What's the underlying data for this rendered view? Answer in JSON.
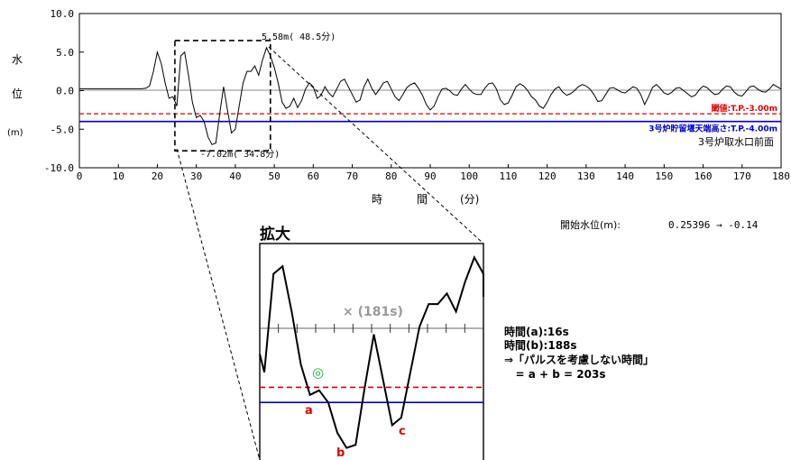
{
  "chart_data": {
    "type": "line",
    "x": [
      0,
      1,
      2,
      3,
      4,
      5,
      6,
      7,
      8,
      9,
      10,
      11,
      12,
      13,
      14,
      15,
      16,
      17,
      18,
      19,
      20,
      21,
      22,
      23,
      24,
      25,
      26,
      27,
      28,
      29,
      30,
      31,
      32,
      33,
      34,
      35,
      36,
      37,
      38,
      39,
      40,
      41,
      42,
      43,
      44,
      45,
      46,
      47,
      48,
      49,
      50,
      51,
      52,
      53,
      54,
      55,
      56,
      57,
      58,
      59,
      60,
      61,
      62,
      63,
      64,
      65,
      66,
      67,
      68,
      69,
      70,
      71,
      72,
      73,
      74,
      75,
      76,
      77,
      78,
      79,
      80,
      81,
      82,
      83,
      84,
      85,
      86,
      87,
      88,
      89,
      90,
      91,
      92,
      93,
      94,
      95,
      96,
      97,
      98,
      99,
      100,
      101,
      102,
      103,
      104,
      105,
      106,
      107,
      108,
      109,
      110,
      111,
      112,
      113,
      114,
      115,
      116,
      117,
      118,
      119,
      120,
      121,
      122,
      123,
      124,
      125,
      126,
      127,
      128,
      129,
      130,
      131,
      132,
      133,
      134,
      135,
      136,
      137,
      138,
      139,
      140,
      141,
      142,
      143,
      144,
      145,
      146,
      147,
      148,
      149,
      150,
      151,
      152,
      153,
      154,
      155,
      156,
      157,
      158,
      159,
      160,
      161,
      162,
      163,
      164,
      165,
      166,
      167,
      168,
      169,
      170,
      171,
      172,
      173,
      174,
      175,
      176,
      177,
      178,
      179,
      180
    ],
    "y": [
      0.25,
      0.25,
      0.25,
      0.25,
      0.25,
      0.25,
      0.25,
      0.25,
      0.25,
      0.25,
      0.25,
      0.25,
      0.25,
      0.25,
      0.25,
      0.25,
      0.25,
      0.3,
      0.6,
      2.5,
      5.0,
      3.5,
      1.0,
      -1.0,
      -0.8,
      -2.0,
      4.5,
      5.0,
      2.0,
      -1.5,
      -3.5,
      -3.2,
      -4.0,
      -6.0,
      -7.0,
      -6.8,
      -3.0,
      0.5,
      -2.5,
      -5.5,
      -5.0,
      -2.0,
      1.0,
      2.5,
      2.5,
      3.2,
      2.0,
      4.0,
      5.58,
      4.5,
      3.0,
      1.0,
      -1.5,
      -2.3,
      -2.0,
      -1.0,
      -2.2,
      -1.3,
      0.2,
      1.0,
      0.5,
      -1.0,
      -0.6,
      0.5,
      -0.3,
      -0.8,
      0.2,
      1.2,
      1.5,
      0.5,
      -0.5,
      -1.5,
      -1.2,
      0.5,
      1.5,
      0.3,
      -0.5,
      0.2,
      1.0,
      1.2,
      0.2,
      -0.8,
      -1.3,
      -0.5,
      0.4,
      0.8,
      1.0,
      0.3,
      -0.6,
      -1.8,
      -2.5,
      -2.0,
      -0.8,
      0.2,
      0.3,
      0.0,
      -0.5,
      -0.6,
      0.2,
      0.8,
      0.2,
      -0.3,
      -0.5,
      -0.5,
      0.3,
      0.9,
      1.0,
      0.2,
      -1.2,
      -1.8,
      -1.6,
      -0.6,
      0.5,
      0.9,
      0.6,
      0.0,
      -0.8,
      -1.2,
      -2.0,
      -2.3,
      -1.5,
      -0.5,
      0.2,
      0.5,
      -0.2,
      -0.6,
      -0.4,
      0.0,
      0.5,
      0.8,
      0.6,
      0.2,
      -0.5,
      -1.4,
      -1.3,
      -0.5,
      0.3,
      0.4,
      0.1,
      -0.2,
      -0.3,
      0.1,
      0.5,
      0.3,
      -0.5,
      -1.8,
      -0.8,
      0.4,
      0.8,
      0.3,
      -0.3,
      -0.5,
      -0.2,
      0.3,
      0.4,
      0.0,
      -0.4,
      -0.8,
      -0.6,
      0.1,
      0.6,
      0.4,
      -0.1,
      -0.5,
      -0.4,
      0.2,
      0.6,
      0.5,
      -0.2,
      -0.6,
      -0.7,
      -0.1,
      0.5,
      0.6,
      0.2,
      -0.1,
      -0.2,
      0.2,
      0.8,
      0.5,
      0.2
    ],
    "xlim": [
      0,
      180
    ],
    "ylim": [
      -10,
      10
    ],
    "xticks": [
      0,
      10,
      20,
      30,
      40,
      50,
      60,
      70,
      80,
      90,
      100,
      110,
      120,
      130,
      140,
      150,
      160,
      170,
      180
    ],
    "yticks": [
      10,
      5,
      0,
      -5,
      -10
    ],
    "ytick_labels": [
      "10.0",
      "5.0",
      "0.0",
      "-5.0",
      "-10.0"
    ],
    "xlabel_parts": [
      "時",
      "間",
      "(分)"
    ],
    "ylabel_parts": [
      "水",
      "位",
      "(m)"
    ],
    "reference_lines": [
      {
        "y": -3.0,
        "label": "閾値:T.P.-3.00m",
        "color": "#e00000",
        "style": "dashed"
      },
      {
        "y": -4.0,
        "label": "3号炉貯留堰天端高さ:T.P.-4.00m",
        "color": "#0000cc",
        "style": "solid"
      }
    ],
    "location_label": "3号炉取水口前面",
    "max_annotation": "5.58m( 48.5分)",
    "min_annotation": "-7.02m( 34.8分)",
    "start_level_label": "開始水位(m):",
    "start_level_value": "0.25396 → -0.14",
    "zoom_window": {
      "x": [
        24.5,
        49
      ],
      "y": [
        -7.8,
        6.5
      ]
    },
    "grid": false,
    "legend": "none"
  },
  "zoom": {
    "title": "拡大",
    "cross_label": "× (181s)",
    "double_circle": "◎",
    "point_labels": [
      "a",
      "b",
      "c"
    ]
  },
  "note_lines": [
    "時間(a):16s",
    "時間(b):188s",
    "⇒「パルスを考慮しない時間」",
    "   = a + b = 203s"
  ],
  "colors": {
    "threshold": "#e00000",
    "weir": "#0000cc",
    "curve": "#000000",
    "labels_red": "#e00000",
    "circle": "#22aa44",
    "zoom_cross": "#999999"
  }
}
